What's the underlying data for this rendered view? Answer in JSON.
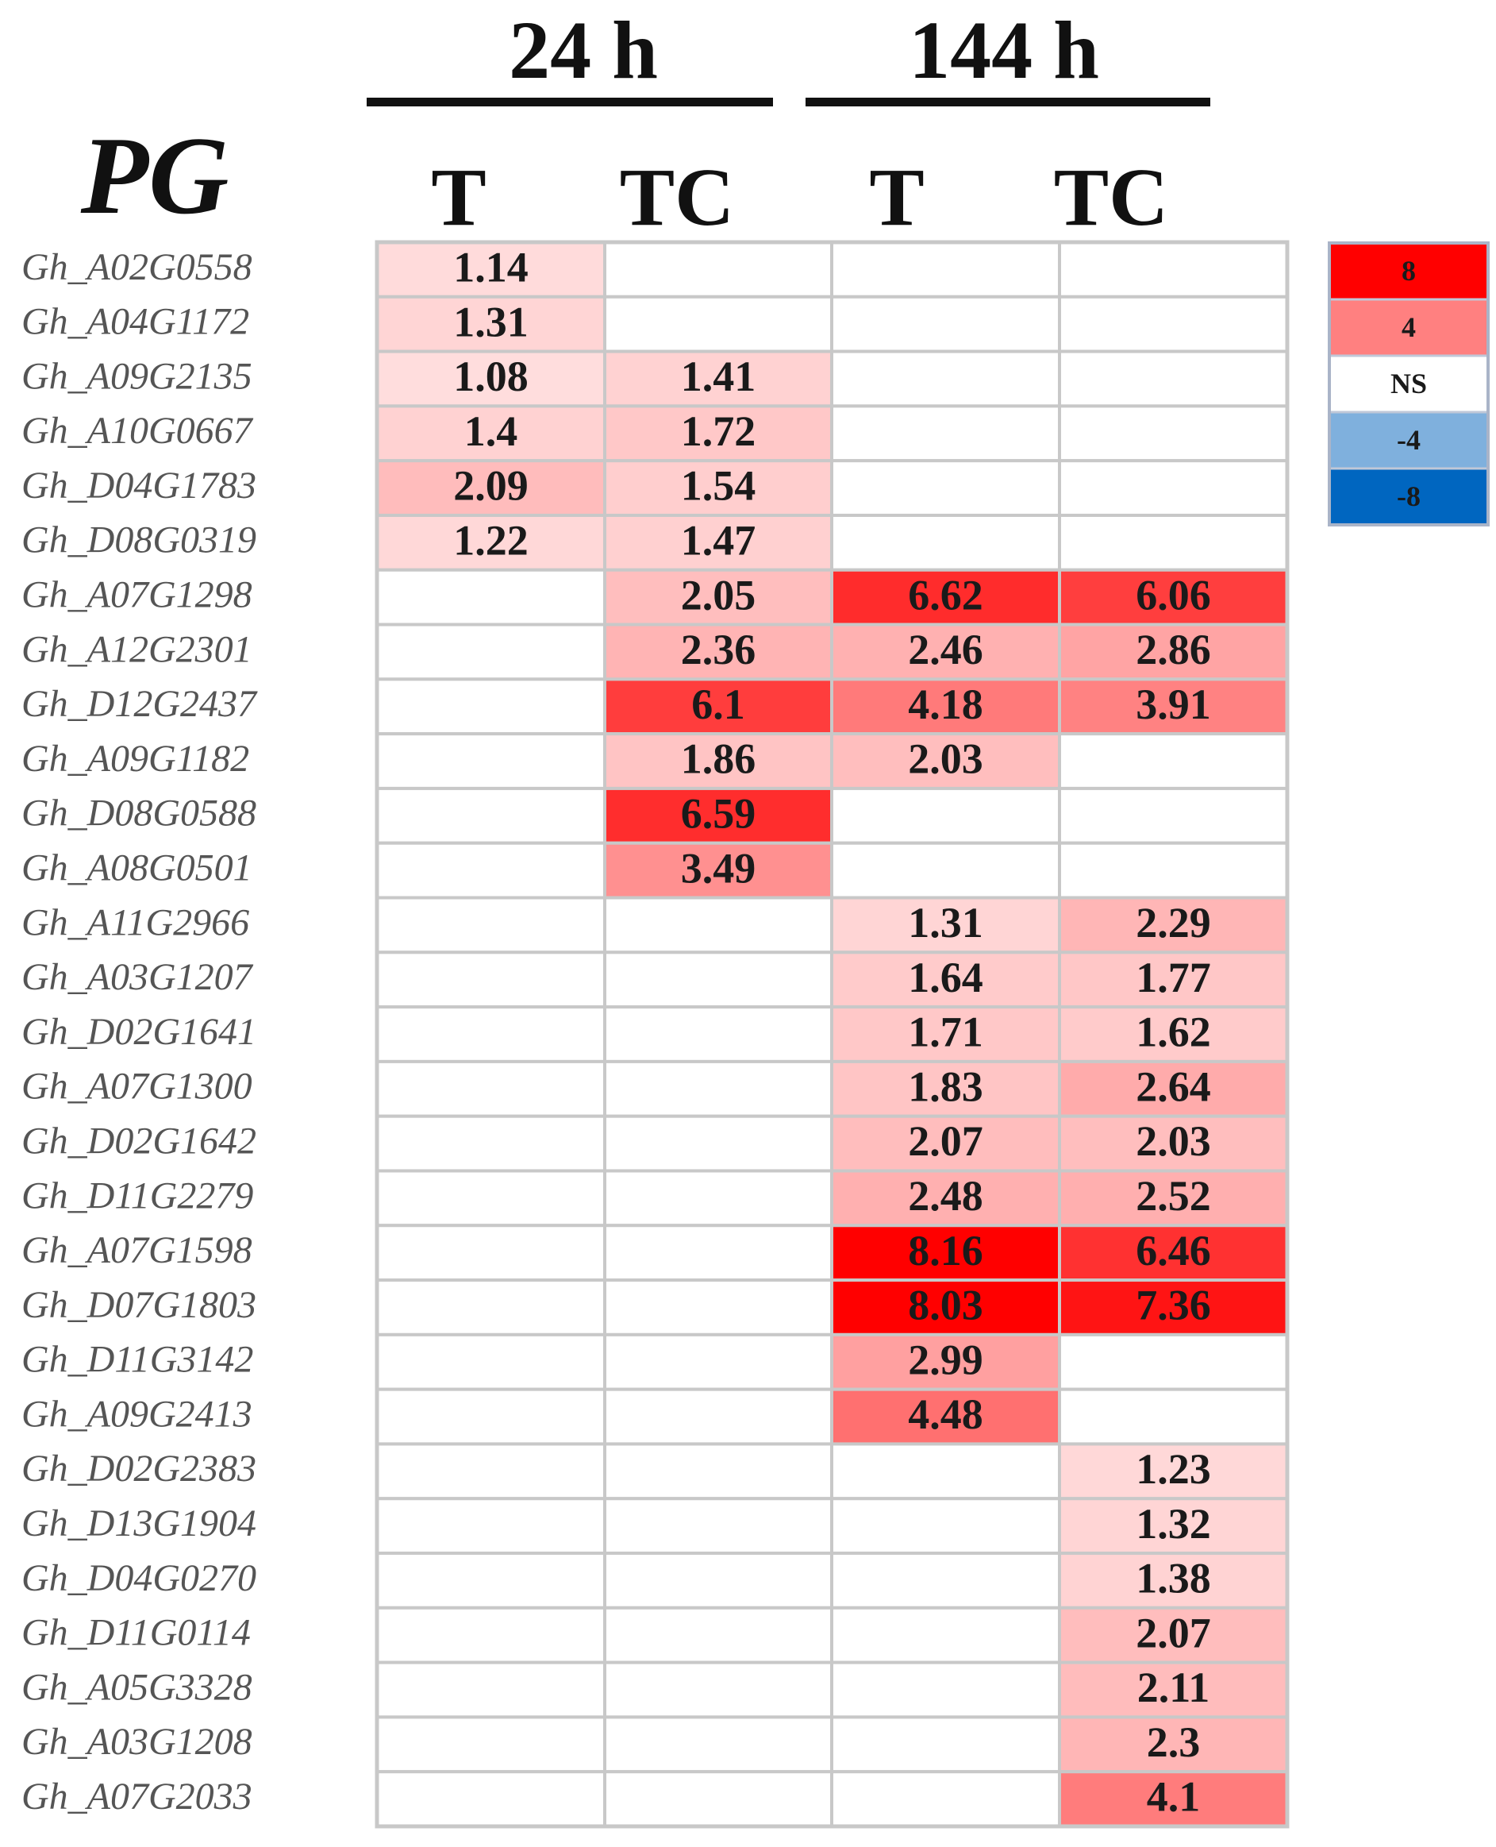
{
  "chart_data": {
    "type": "heatmap",
    "title": "PG",
    "groups": [
      "24 h",
      "144 h"
    ],
    "columns": [
      "T",
      "TC",
      "T",
      "TC"
    ],
    "rows": [
      "Gh_A02G0558",
      "Gh_A04G1172",
      "Gh_A09G2135",
      "Gh_A10G0667",
      "Gh_D04G1783",
      "Gh_D08G0319",
      "Gh_A07G1298",
      "Gh_A12G2301",
      "Gh_D12G2437",
      "Gh_A09G1182",
      "Gh_D08G0588",
      "Gh_A08G0501",
      "Gh_A11G2966",
      "Gh_A03G1207",
      "Gh_D02G1641",
      "Gh_A07G1300",
      "Gh_D02G1642",
      "Gh_D11G2279",
      "Gh_A07G1598",
      "Gh_D07G1803",
      "Gh_D11G3142",
      "Gh_A09G2413",
      "Gh_D02G2383",
      "Gh_D13G1904",
      "Gh_D04G0270",
      "Gh_D11G0114",
      "Gh_A05G3328",
      "Gh_A03G1208",
      "Gh_A07G2033"
    ],
    "values": [
      [
        "1.14",
        null,
        null,
        null
      ],
      [
        "1.31",
        null,
        null,
        null
      ],
      [
        "1.08",
        "1.41",
        null,
        null
      ],
      [
        "1.4",
        "1.72",
        null,
        null
      ],
      [
        "2.09",
        "1.54",
        null,
        null
      ],
      [
        "1.22",
        "1.47",
        null,
        null
      ],
      [
        null,
        "2.05",
        "6.62",
        "6.06"
      ],
      [
        null,
        "2.36",
        "2.46",
        "2.86"
      ],
      [
        null,
        "6.1",
        "4.18",
        "3.91"
      ],
      [
        null,
        "1.86",
        "2.03",
        null
      ],
      [
        null,
        "6.59",
        null,
        null
      ],
      [
        null,
        "3.49",
        null,
        null
      ],
      [
        null,
        null,
        "1.31",
        "2.29"
      ],
      [
        null,
        null,
        "1.64",
        "1.77"
      ],
      [
        null,
        null,
        "1.71",
        "1.62"
      ],
      [
        null,
        null,
        "1.83",
        "2.64"
      ],
      [
        null,
        null,
        "2.07",
        "2.03"
      ],
      [
        null,
        null,
        "2.48",
        "2.52"
      ],
      [
        null,
        null,
        "8.16",
        "6.46"
      ],
      [
        null,
        null,
        "8.03",
        "7.36"
      ],
      [
        null,
        null,
        "2.99",
        null
      ],
      [
        null,
        null,
        "4.48",
        null
      ],
      [
        null,
        null,
        null,
        "1.23"
      ],
      [
        null,
        null,
        null,
        "1.32"
      ],
      [
        null,
        null,
        null,
        "1.38"
      ],
      [
        null,
        null,
        null,
        "2.07"
      ],
      [
        null,
        null,
        null,
        "2.11"
      ],
      [
        null,
        null,
        null,
        "2.3"
      ],
      [
        null,
        null,
        null,
        "4.1"
      ]
    ],
    "legend": {
      "placement": "right",
      "entries": [
        {
          "label": "8",
          "value": 8,
          "color": "#ff0000"
        },
        {
          "label": "4",
          "value": 4,
          "color": "#ff8080"
        },
        {
          "label": "NS",
          "value": 0,
          "color": "#ffffff"
        },
        {
          "label": "-4",
          "value": -4,
          "color": "#7fb0dd"
        },
        {
          "label": "-8",
          "value": -8,
          "color": "#0066c0"
        }
      ]
    },
    "colors": {
      "positive": "#ff0000",
      "negative": "#0066c0",
      "ns": "#ffffff",
      "grid": "#c8c8c8"
    }
  }
}
